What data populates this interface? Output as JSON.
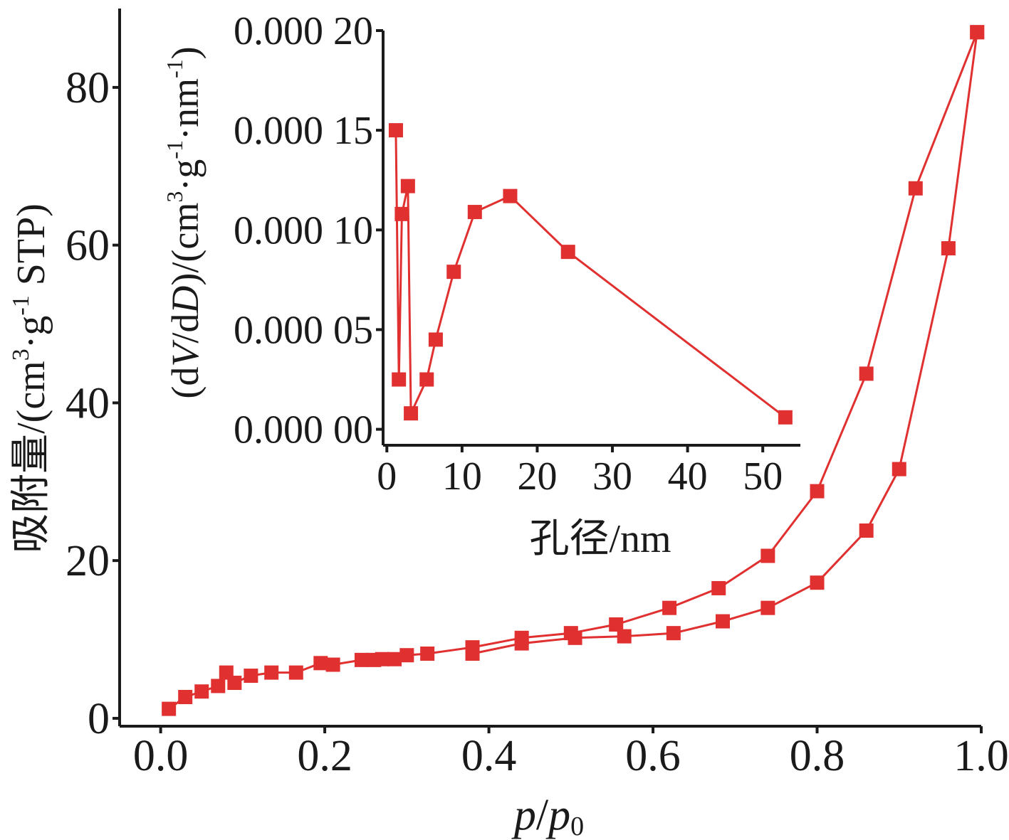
{
  "colors": {
    "series": "#e03030",
    "axis": "#1a1a1a"
  },
  "chart_data": [
    {
      "type": "line",
      "marker": "square",
      "xlabel_parts": [
        "p",
        "/",
        "p",
        "0"
      ],
      "ylabel_parts": [
        "吸附量/(cm",
        "3",
        "·g",
        "-1",
        " STP)"
      ],
      "xlim": [
        -0.05,
        1.0
      ],
      "ylim": [
        -1,
        90
      ],
      "xticks": [
        0.0,
        0.2,
        0.4,
        0.6,
        0.8,
        1.0
      ],
      "xtick_labels": [
        "0.0",
        "0.2",
        "0.4",
        "0.6",
        "0.8",
        "1.0"
      ],
      "yticks": [
        0,
        20,
        40,
        60,
        80
      ],
      "ytick_labels": [
        "0",
        "20",
        "40",
        "60",
        "80"
      ],
      "series": [
        {
          "x": [
            0.01,
            0.03,
            0.05,
            0.07,
            0.08,
            0.09,
            0.11,
            0.135,
            0.165,
            0.195,
            0.21,
            0.245,
            0.26,
            0.27,
            0.285,
            0.3,
            0.325,
            0.38,
            0.44,
            0.5,
            0.555,
            0.62,
            0.68,
            0.74,
            0.8,
            0.86,
            0.92,
            0.995
          ],
          "y": [
            1.2,
            2.7,
            3.4,
            4.1,
            5.8,
            4.5,
            5.4,
            5.8,
            5.8,
            7.0,
            6.8,
            7.4,
            7.4,
            7.5,
            7.5,
            8.0,
            8.2,
            9.0,
            10.2,
            10.8,
            11.9,
            14.0,
            16.5,
            20.6,
            28.8,
            43.7,
            67.2,
            87.0
          ]
        },
        {
          "x": [
            0.38,
            0.44,
            0.505,
            0.565,
            0.625,
            0.685,
            0.74,
            0.8,
            0.86,
            0.9,
            0.96,
            0.995
          ],
          "y": [
            8.2,
            9.5,
            10.2,
            10.4,
            10.8,
            12.3,
            14.0,
            17.2,
            23.8,
            31.6,
            59.6,
            87.0
          ]
        }
      ]
    },
    {
      "type": "line",
      "marker": "square",
      "xlabel": "孔径/nm",
      "ylabel_parts": [
        "(d",
        "V",
        "/d",
        "D",
        ")/(cm",
        "3",
        "·g",
        "-1",
        "·nm",
        "-1",
        ")"
      ],
      "xlim": [
        -0.5,
        55
      ],
      "ylim": [
        -8e-06,
        0.0002
      ],
      "xticks": [
        0,
        10,
        20,
        30,
        40,
        50
      ],
      "xtick_labels": [
        "0",
        "10",
        "20",
        "30",
        "40",
        "50"
      ],
      "yticks": [
        0,
        5e-05,
        0.0001,
        0.00015,
        0.0002
      ],
      "ytick_labels": [
        "0.000 00",
        "0.000 05",
        "0.000 10",
        "0.000 15",
        "0.000 20"
      ],
      "series": [
        {
          "x": [
            1.2,
            1.6,
            2.0,
            2.8,
            3.2,
            5.3,
            6.5,
            8.9,
            11.7,
            16.4,
            24.1,
            53.0
          ],
          "y": [
            0.00015,
            2.5e-05,
            0.000108,
            0.000122,
            8e-06,
            2.5e-05,
            4.5e-05,
            7.9e-05,
            0.000109,
            0.000117,
            8.9e-05,
            6e-06
          ]
        }
      ]
    }
  ]
}
